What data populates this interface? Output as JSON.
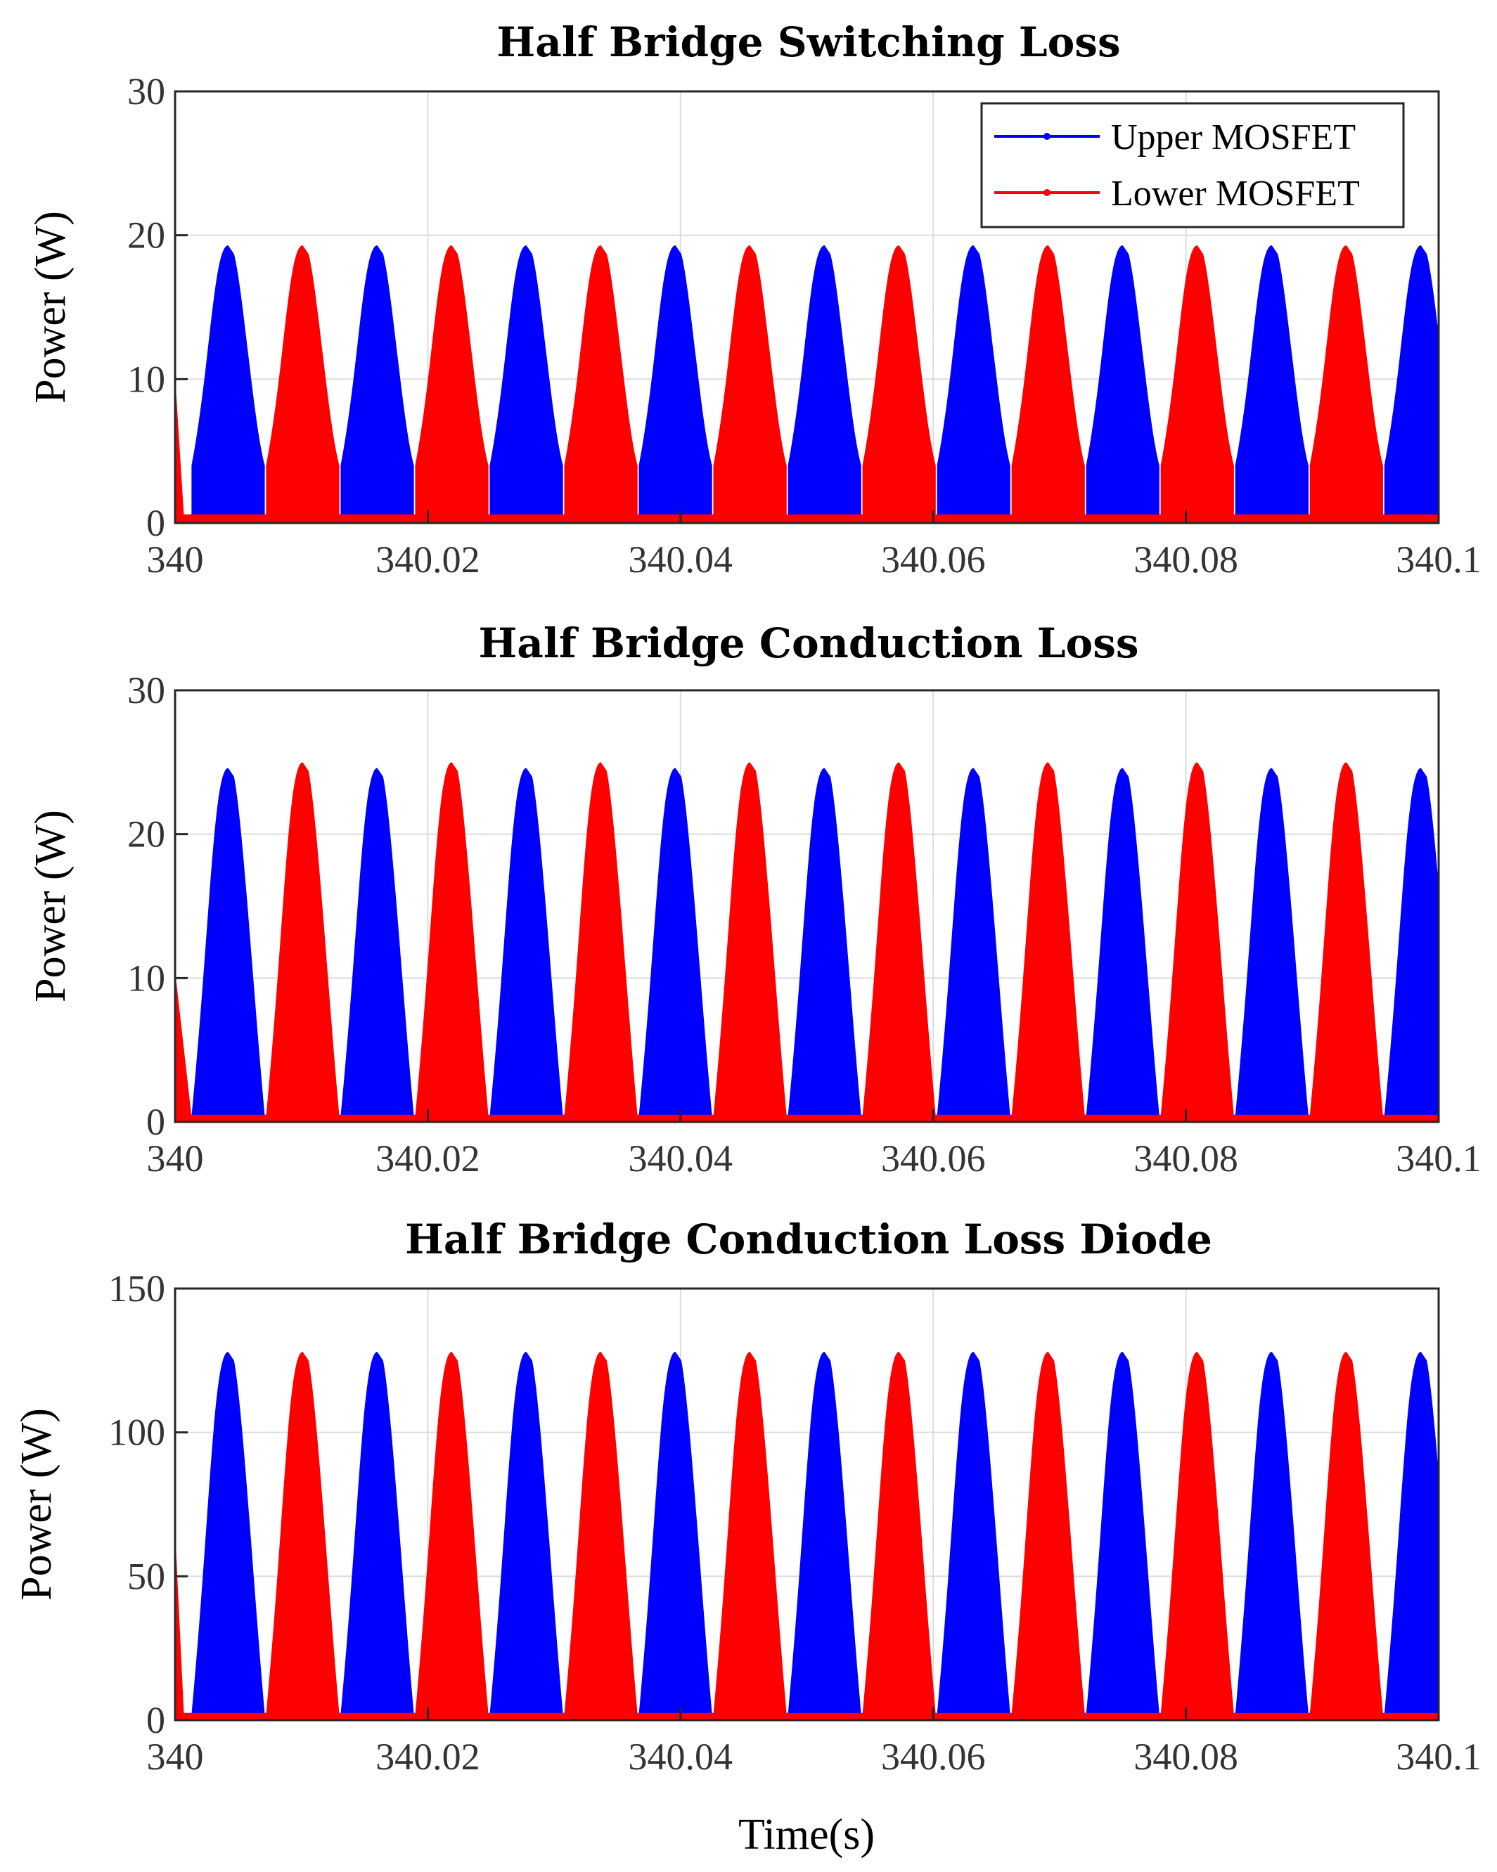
{
  "figure": {
    "xlabel": "Time(s)"
  },
  "chart_data": [
    {
      "type": "area",
      "title": "Half Bridge Switching Loss",
      "ylabel": "Power (W)",
      "xlabel": "",
      "xlim": [
        340,
        340.1
      ],
      "ylim": [
        0,
        30
      ],
      "xticks": [
        "340",
        "340.02",
        "340.04",
        "340.06",
        "340.08",
        "340.1"
      ],
      "yticks": [
        "0",
        "10",
        "20",
        "30"
      ],
      "grid": true,
      "legend": "top-right",
      "period": 0.0118,
      "series": [
        {
          "name": "Upper MOSFET",
          "color": "#0000ff",
          "start": 340.0013,
          "width": 0.0058,
          "peak": 19.3,
          "base": 0.5,
          "edge": 3.5,
          "x": [
            340.0013,
            340.0042,
            340.0071
          ],
          "values": [
            0.5,
            19.3,
            0.5
          ]
        },
        {
          "name": "Lower MOSFET",
          "color": "#ff0000",
          "start": 340.0072,
          "width": 0.0058,
          "peak": 19.3,
          "base": 0.5,
          "edge": 3.5,
          "x": [
            340.0072,
            340.0101,
            340.013
          ],
          "values": [
            0.5,
            19.3,
            0.5
          ],
          "initial": [
            [
              340.0,
              10.2
            ],
            [
              340.0007,
              0.5
            ]
          ]
        }
      ]
    },
    {
      "type": "area",
      "title": "Half Bridge Conduction Loss",
      "ylabel": "Power (W)",
      "xlabel": "",
      "xlim": [
        340,
        340.1
      ],
      "ylim": [
        0,
        30
      ],
      "xticks": [
        "340",
        "340.02",
        "340.04",
        "340.06",
        "340.08",
        "340.1"
      ],
      "yticks": [
        "0",
        "10",
        "20",
        "30"
      ],
      "grid": true,
      "period": 0.0118,
      "series": [
        {
          "name": "Upper MOSFET",
          "color": "#0000ff",
          "start": 340.0013,
          "width": 0.0058,
          "peak": 24.6,
          "base": 0.4,
          "edge": 0,
          "x": [
            340.0013,
            340.0042,
            340.0071
          ],
          "values": [
            0.4,
            24.6,
            0.4
          ]
        },
        {
          "name": "Lower MOSFET",
          "color": "#ff0000",
          "start": 340.0072,
          "width": 0.0058,
          "peak": 25.0,
          "base": 0.4,
          "edge": 0,
          "x": [
            340.0072,
            340.0101,
            340.013
          ],
          "values": [
            0.4,
            25.0,
            0.4
          ],
          "initial": [
            [
              340.0,
              10.5
            ],
            [
              340.0013,
              0.4
            ]
          ]
        }
      ]
    },
    {
      "type": "area",
      "title": "Half Bridge Conduction Loss Diode",
      "ylabel": "Power (W)",
      "xlabel": "Time(s)",
      "xlim": [
        340,
        340.1
      ],
      "ylim": [
        0,
        150
      ],
      "xticks": [
        "340",
        "340.02",
        "340.04",
        "340.06",
        "340.08",
        "340.1"
      ],
      "yticks": [
        "0",
        "50",
        "100",
        "150"
      ],
      "grid": true,
      "period": 0.0118,
      "series": [
        {
          "name": "Upper MOSFET",
          "color": "#0000ff",
          "start": 340.0013,
          "width": 0.0058,
          "peak": 128,
          "base": 2,
          "edge": 0,
          "x": [
            340.0013,
            340.0042,
            340.0071
          ],
          "values": [
            2,
            128,
            2
          ]
        },
        {
          "name": "Lower MOSFET",
          "color": "#ff0000",
          "start": 340.0072,
          "width": 0.0058,
          "peak": 128,
          "base": 2,
          "edge": 0,
          "x": [
            340.0072,
            340.0101,
            340.013
          ],
          "values": [
            2,
            128,
            2
          ],
          "initial": [
            [
              340.0,
              66
            ],
            [
              340.0007,
              2
            ]
          ]
        }
      ]
    }
  ]
}
